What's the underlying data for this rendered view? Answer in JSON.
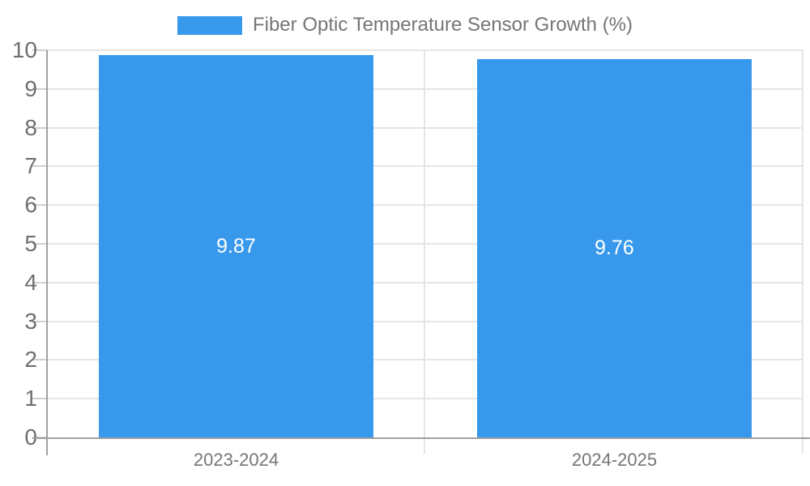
{
  "legend": {
    "label": "Fiber Optic Temperature Sensor Growth (%)"
  },
  "colors": {
    "bar": "#3899ec",
    "grid": "#e5e5e5",
    "axis": "#a0a0a0",
    "tick": "#d0d0d0",
    "text": "#757575",
    "y_text": "#6f6f6f",
    "bar_label": "#ffffff"
  },
  "chart_data": {
    "type": "bar",
    "title": "Fiber Optic Temperature Sensor Growth (%)",
    "categories": [
      "2023-2024",
      "2024-2025"
    ],
    "values": [
      9.87,
      9.76
    ],
    "value_labels": [
      "9.87",
      "9.76"
    ],
    "xlabel": "",
    "ylabel": "",
    "ylim": [
      0,
      10
    ],
    "y_tick_step": 1,
    "y_tick_labels": [
      "0",
      "1",
      "2",
      "3",
      "4",
      "5",
      "6",
      "7",
      "8",
      "9",
      "10"
    ],
    "grid": true,
    "legend_position": "top",
    "value_label_position": "center",
    "bar_width_fraction": 0.362
  }
}
